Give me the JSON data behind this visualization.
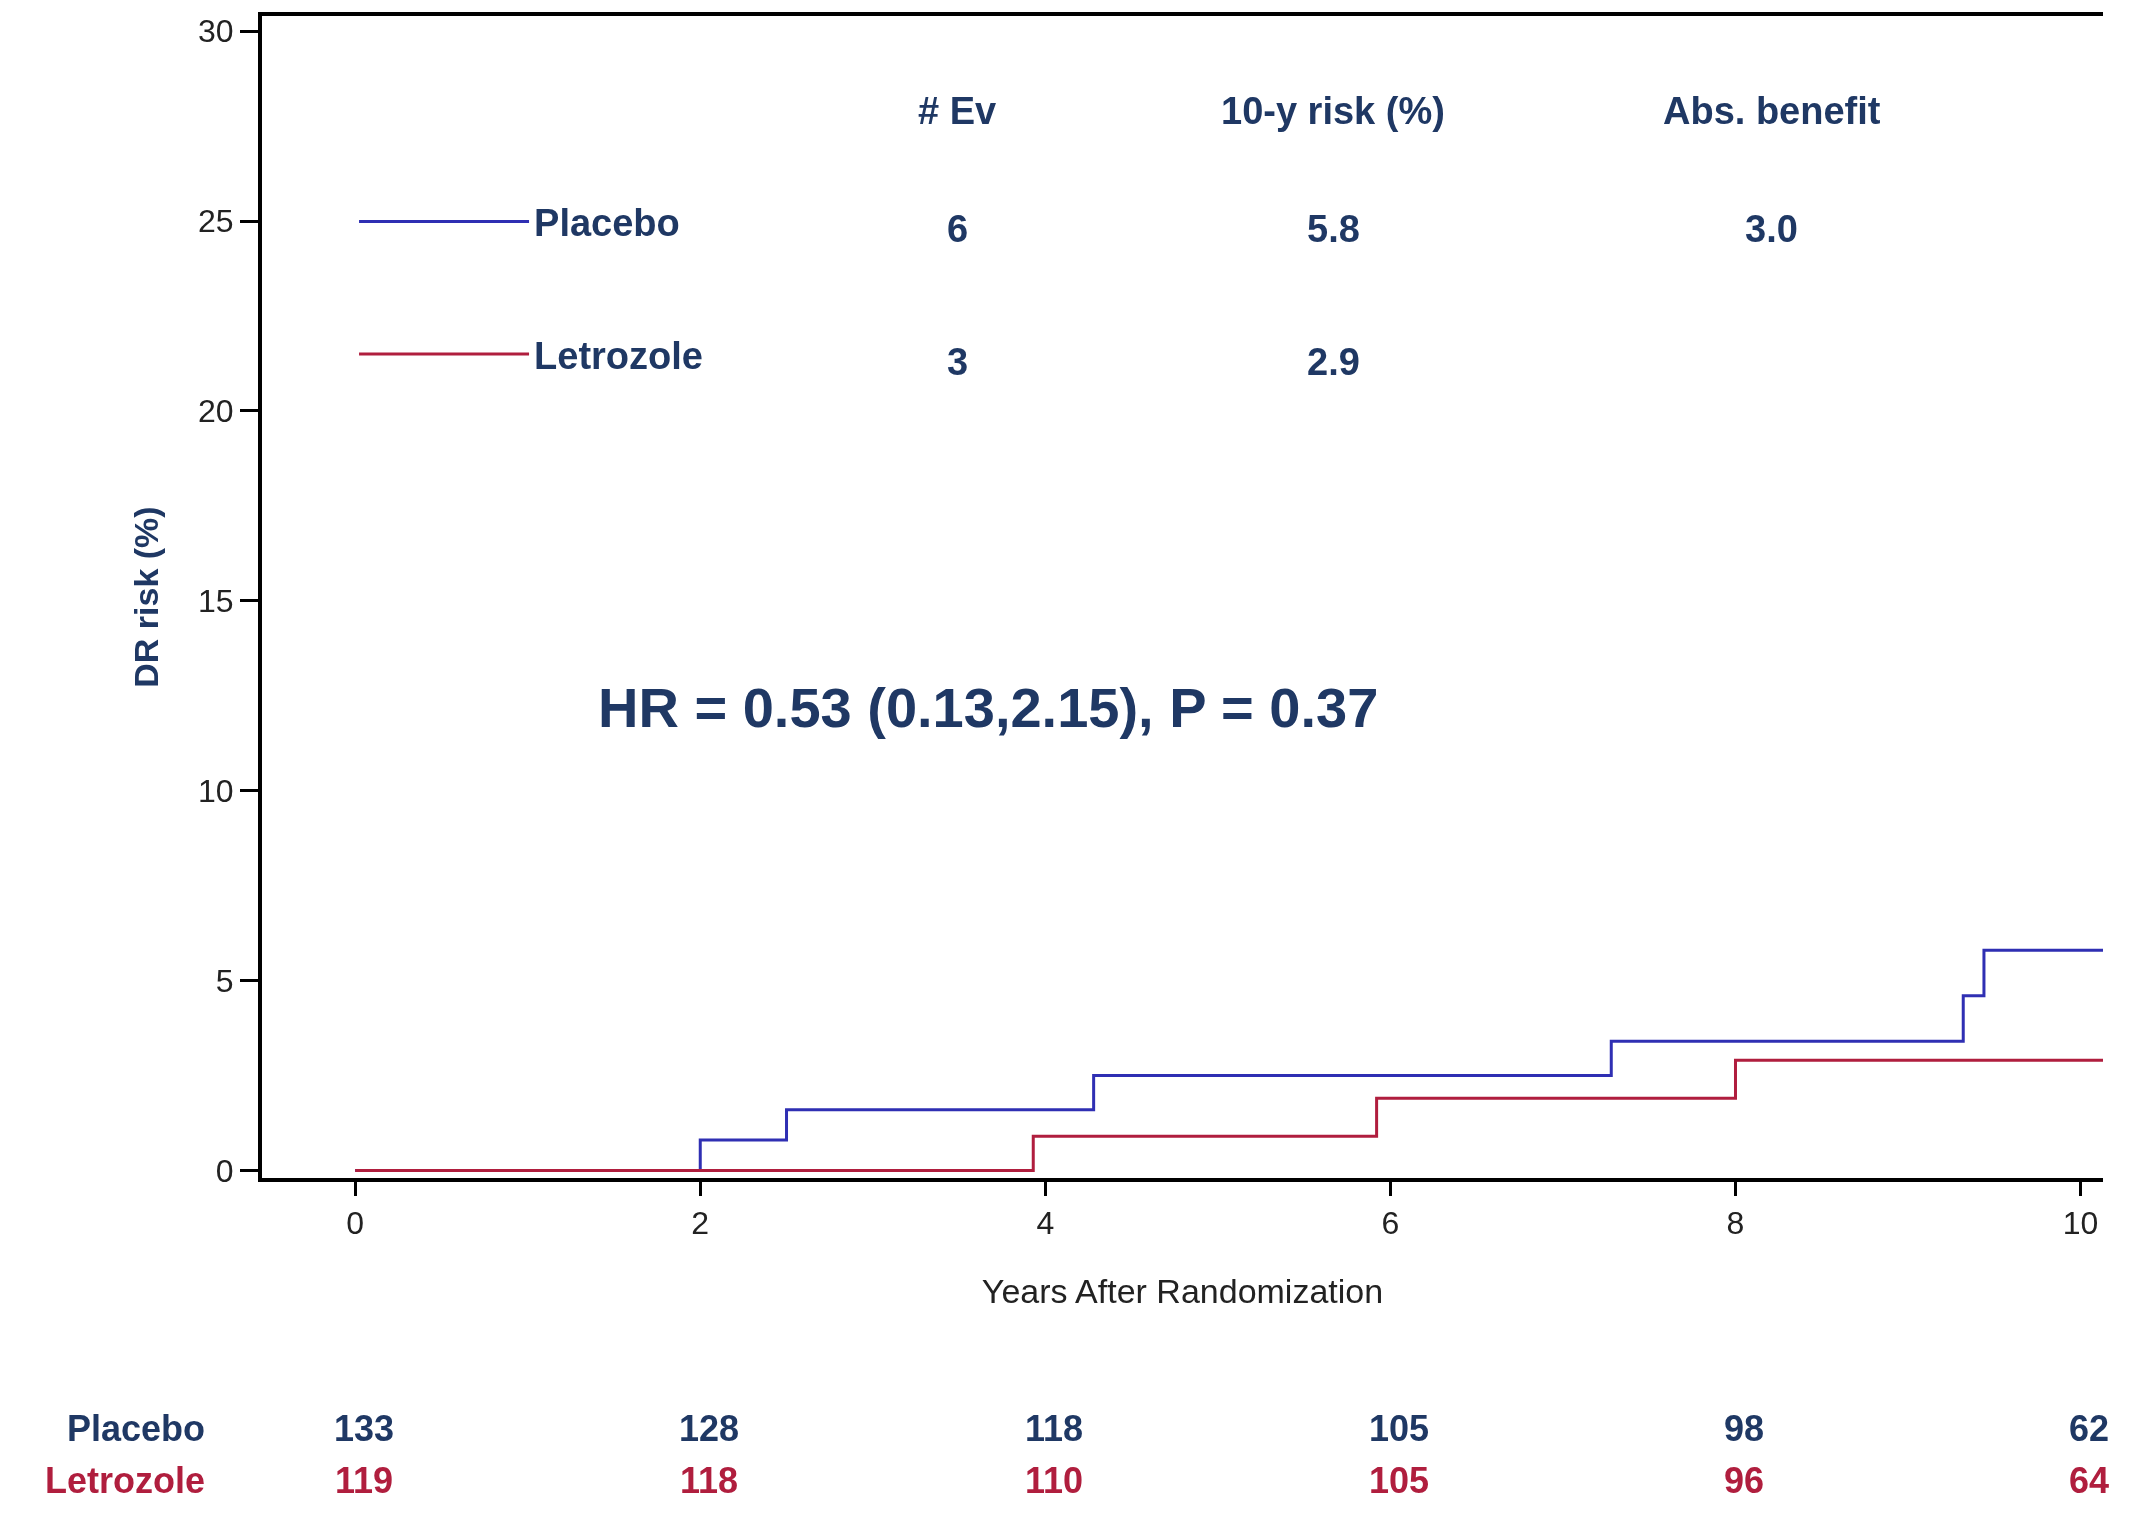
{
  "chart_data": {
    "type": "step",
    "xlabel": "Years After Randomization",
    "ylabel": "DR risk (%)",
    "series": [
      {
        "name": "Placebo",
        "color": "#2f2fb3",
        "x": [
          0,
          2.0,
          2.5,
          4.28,
          7.28,
          9.32,
          9.44,
          10.13
        ],
        "values": [
          0,
          0.8,
          1.6,
          2.5,
          3.4,
          4.6,
          5.8,
          5.8
        ]
      },
      {
        "name": "Letrozole",
        "color": "#b01e3e",
        "x": [
          0,
          3.93,
          5.92,
          8.0,
          10.13
        ],
        "values": [
          0,
          0.9,
          1.9,
          2.9,
          2.9
        ]
      }
    ],
    "xlim": [
      -0.54,
      10.13
    ],
    "xticks": [
      0,
      2,
      4,
      6,
      8,
      10
    ],
    "ylim": [
      -0.2,
      30.4
    ],
    "yticks": [
      0,
      5,
      10,
      15,
      20,
      25,
      30
    ],
    "grid": false,
    "legend": "top left",
    "marker": "none",
    "line_style": "solid",
    "annotations": [
      "# Ev",
      "10-y risk (%)",
      "Abs. benefit",
      "6",
      "5.8",
      "3.0",
      "3",
      "2.9",
      "HR = 0.53 (0.13,2.15), P = 0.37",
      "Placebo",
      "133",
      "128",
      "118",
      "105",
      "98",
      "62",
      "Letrozole",
      "119",
      "118",
      "110",
      "105",
      "96",
      "64"
    ]
  }
}
